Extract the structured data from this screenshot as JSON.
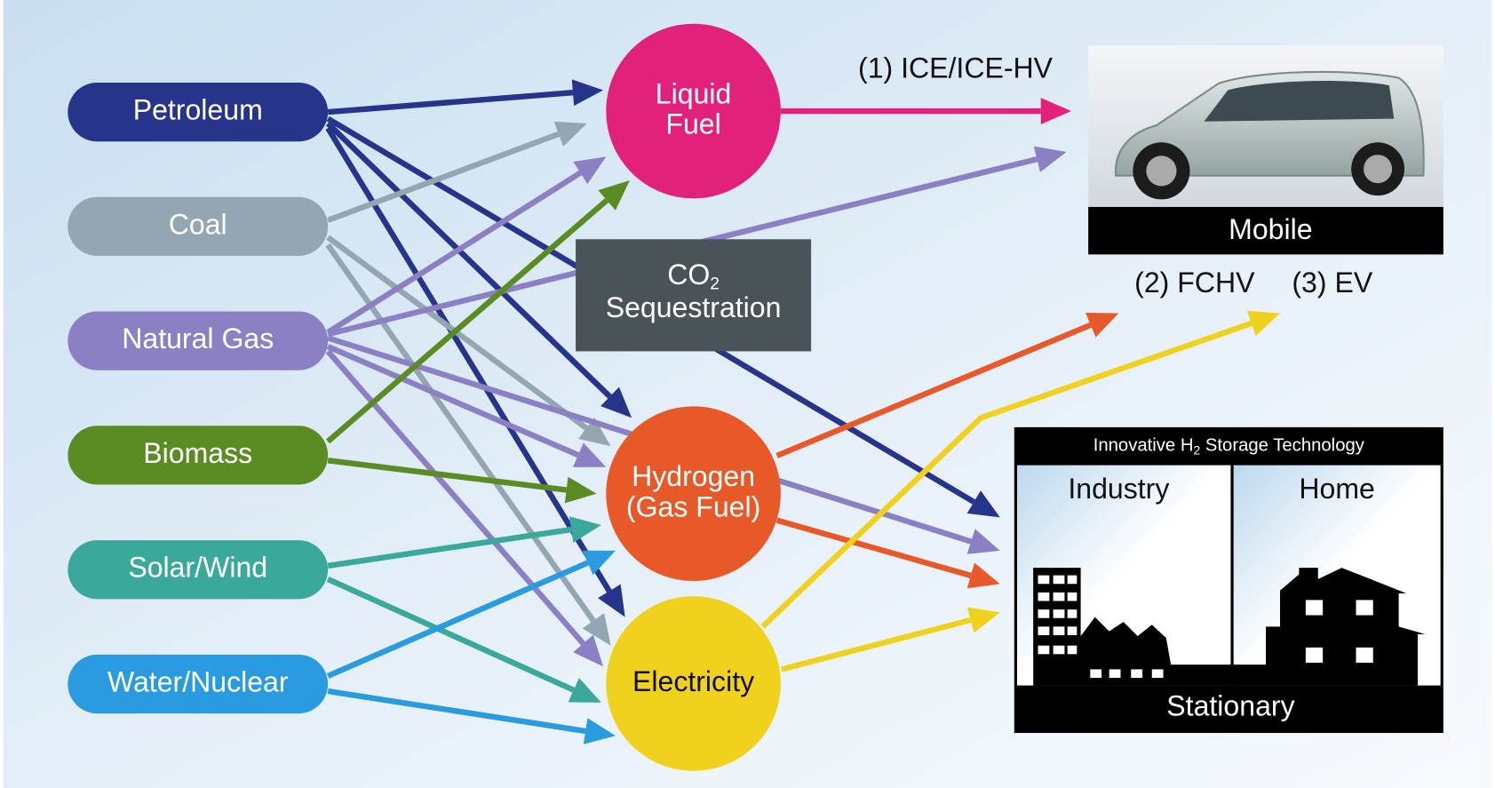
{
  "sources": [
    "Petroleum",
    "Coal",
    "Natural Gas",
    "Biomass",
    "Solar/Wind",
    "Water/Nuclear"
  ],
  "carriers": [
    {
      "lines": [
        "Liquid",
        "Fuel"
      ]
    },
    {
      "lines": [
        "Hydrogen",
        "(Gas Fuel)"
      ]
    },
    {
      "lines": [
        "Electricity"
      ]
    }
  ],
  "co2_box": {
    "line1": "CO",
    "subscript": "2",
    "line2": "Sequestration"
  },
  "routes": [
    "(1) ICE/ICE-HV",
    "(2) FCHV",
    "(3) EV"
  ],
  "mobile": {
    "label": "Mobile"
  },
  "stationary": {
    "header_start": "Innovative H",
    "header_subscript": "2",
    "header_end": " Storage Technology",
    "industry": "Industry",
    "home": "Home",
    "label": "Stationary"
  }
}
